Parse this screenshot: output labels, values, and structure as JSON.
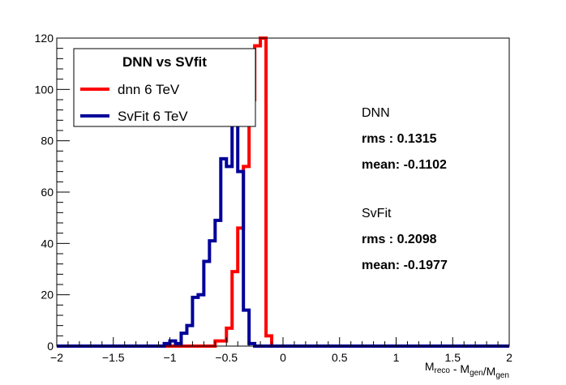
{
  "chart_data": {
    "type": "histogram",
    "title": "",
    "xlabel": {
      "parts": [
        {
          "text": "M",
          "sub": "reco"
        },
        {
          "text": " - M",
          "sub": "gen"
        },
        {
          "text": "/M",
          "sub": "gen"
        }
      ]
    },
    "ylabel": "",
    "xlim": [
      -2,
      2
    ],
    "ylim": [
      0,
      120
    ],
    "x_ticks": [
      -2,
      -1.5,
      -1,
      -0.5,
      0,
      0.5,
      1,
      1.5,
      2
    ],
    "x_tick_labels": [
      "−2",
      "−1.5",
      "−1",
      "−0.5",
      "0",
      "0.5",
      "1",
      "1.5",
      "2"
    ],
    "y_ticks": [
      0,
      20,
      40,
      60,
      80,
      100,
      120
    ],
    "y_tick_labels": [
      "0",
      "20",
      "40",
      "60",
      "80",
      "100",
      "120"
    ],
    "bin_edges_start": -2,
    "bin_width": 0.05,
    "series": [
      {
        "name": "dnn 6 TeV",
        "color": "#ff0000",
        "values": [
          0,
          0,
          0,
          0,
          0,
          0,
          0,
          0,
          0,
          0,
          0,
          0,
          0,
          0,
          0,
          0,
          0,
          0,
          0,
          0,
          0,
          0,
          0,
          0,
          0,
          0,
          0,
          0,
          2,
          2,
          7,
          29,
          46,
          70,
          96,
          117,
          120,
          4,
          0,
          0,
          0,
          0,
          0,
          0,
          0,
          0,
          0,
          0,
          0,
          0,
          0,
          0,
          0,
          0,
          0,
          0,
          0,
          0,
          0,
          0,
          0,
          0,
          0,
          0,
          0,
          0,
          0,
          0,
          0,
          0,
          0,
          0,
          0,
          0,
          0,
          0,
          0,
          0,
          0,
          0
        ]
      },
      {
        "name": "SvFit 6 TeV",
        "color": "#000099",
        "values": [
          0,
          0,
          0,
          0,
          0,
          0,
          0,
          0,
          0,
          0,
          0,
          0,
          0,
          0,
          0,
          0,
          0,
          0,
          0,
          1,
          2,
          1,
          5,
          8,
          19,
          20,
          33,
          41,
          49,
          73,
          70,
          95,
          68,
          14,
          1,
          0,
          0,
          0,
          0,
          0,
          0,
          0,
          0,
          0,
          0,
          0,
          0,
          0,
          0,
          0,
          0,
          0,
          0,
          0,
          0,
          0,
          0,
          0,
          0,
          0,
          0,
          0,
          0,
          0,
          0,
          0,
          0,
          0,
          0,
          0,
          0,
          0,
          0,
          0,
          0,
          0,
          0,
          0,
          0,
          0
        ]
      }
    ],
    "legend": {
      "title": "DNN vs SVfit",
      "position": "top-left"
    },
    "annotations": [
      {
        "label": "DNN",
        "bold": false
      },
      {
        "label": "rms : 0.1315",
        "bold": true
      },
      {
        "label": "mean: -0.1102",
        "bold": true
      },
      {
        "label": "SvFit",
        "bold": false
      },
      {
        "label": "rms : 0.2098",
        "bold": true
      },
      {
        "label": "mean: -0.1977",
        "bold": true
      }
    ]
  }
}
